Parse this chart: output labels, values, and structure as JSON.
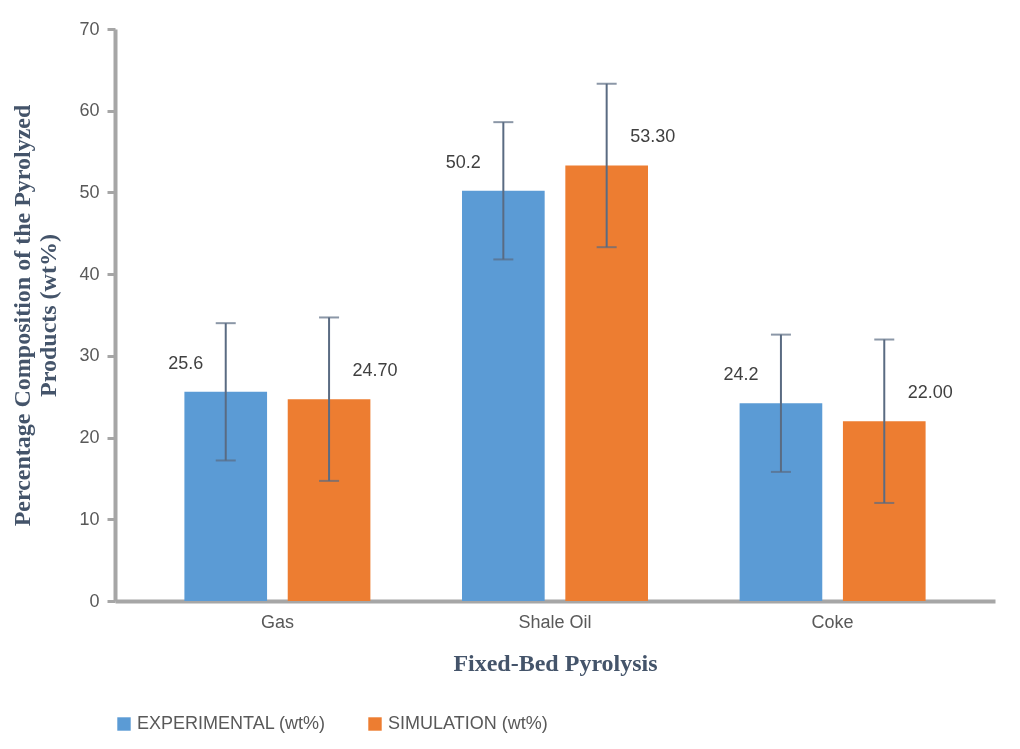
{
  "chart_data": {
    "type": "bar",
    "xlabel": "Fixed-Bed Pyrolysis",
    "ylabel": "Percentage Composition of the Pyrolyzed Products (wt%)",
    "categories": [
      "Gas",
      "Shale Oil",
      "Coke"
    ],
    "series": [
      {
        "name": "EXPERIMENTAL (wt%)",
        "color": "#5b9bd5",
        "values": [
          25.6,
          50.2,
          24.2
        ],
        "errors": [
          8.4,
          8.4,
          8.4
        ],
        "value_labels": [
          "25.6",
          "50.2",
          "24.2"
        ]
      },
      {
        "name": "SIMULATION (wt%)",
        "color": "#ed7d31",
        "values": [
          24.7,
          53.3,
          22.0
        ],
        "errors": [
          10,
          10,
          10
        ],
        "value_labels": [
          "24.70",
          "53.30",
          "22.00"
        ]
      }
    ],
    "ylim": [
      0,
      70
    ],
    "yticks": [
      0,
      10,
      20,
      30,
      40,
      50,
      60,
      70
    ],
    "grid": false,
    "legend": "bottom"
  }
}
